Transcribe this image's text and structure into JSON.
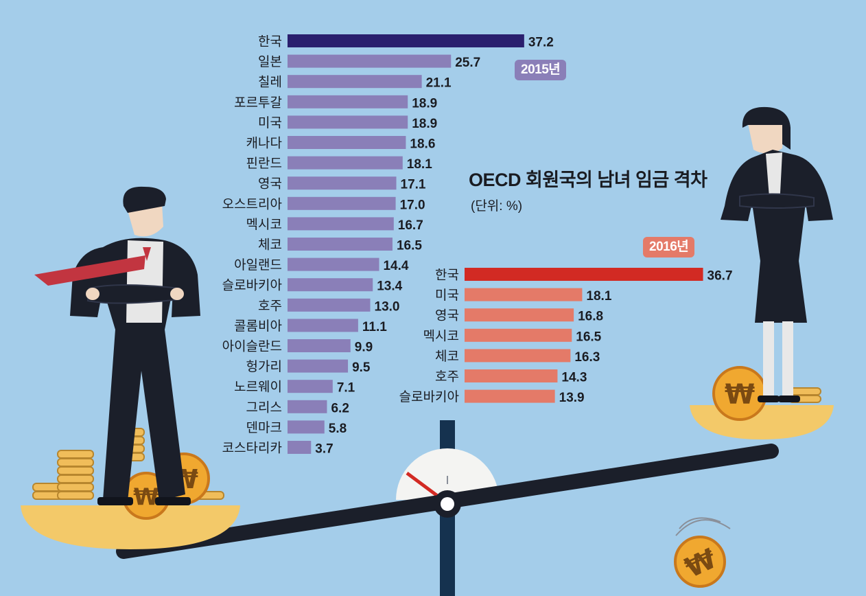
{
  "title": "OECD 회원국의 남녀 임금 격차",
  "unit": "(단위: %)",
  "colors": {
    "background": "#a4cdea",
    "series_2015_highlight": "#2a1f6e",
    "series_2015": "#8a7fb8",
    "series_2016_highlight": "#d22a23",
    "series_2016": "#e47a68"
  },
  "chart_data": [
    {
      "type": "bar",
      "orientation": "horizontal",
      "badge": "2015년",
      "categories": [
        "한국",
        "일본",
        "칠레",
        "포르투갈",
        "미국",
        "캐나다",
        "핀란드",
        "영국",
        "오스트리아",
        "멕시코",
        "체코",
        "아일랜드",
        "슬로바키아",
        "호주",
        "콜롬비아",
        "아이슬란드",
        "헝가리",
        "노르웨이",
        "그리스",
        "덴마크",
        "코스타리카"
      ],
      "values": [
        37.2,
        25.7,
        21.1,
        18.9,
        18.9,
        18.6,
        18.1,
        17.1,
        17.0,
        16.7,
        16.5,
        14.4,
        13.4,
        13.0,
        11.1,
        9.9,
        9.5,
        7.1,
        6.2,
        5.8,
        3.7
      ],
      "labels": [
        "37.2",
        "25.7",
        "21.1",
        "18.9",
        "18.9",
        "18.6",
        "18.1",
        "17.1",
        "17.0",
        "16.7",
        "16.5",
        "14.4",
        "13.4",
        "13.0",
        "11.1",
        "9.9",
        "9.5",
        "7.1",
        "6.2",
        "5.8",
        "3.7"
      ]
    },
    {
      "type": "bar",
      "orientation": "horizontal",
      "badge": "2016년",
      "categories": [
        "한국",
        "미국",
        "영국",
        "멕시코",
        "체코",
        "호주",
        "슬로바키아"
      ],
      "values": [
        36.7,
        18.1,
        16.8,
        16.5,
        16.3,
        14.3,
        13.9
      ],
      "labels": [
        "36.7",
        "18.1",
        "16.8",
        "16.5",
        "16.3",
        "14.3",
        "13.9"
      ]
    }
  ]
}
